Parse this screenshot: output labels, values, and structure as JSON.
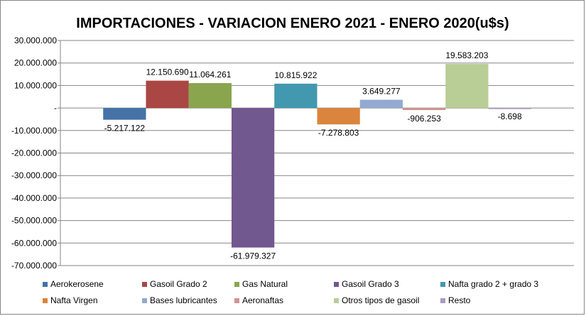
{
  "chart_data": {
    "type": "bar",
    "title": "IMPORTACIONES - VARIACION ENERO 2021  - ENERO 2020(u$s)",
    "xlabel": "",
    "ylabel": "",
    "ylim": [
      -70000000,
      30000000
    ],
    "yticks": [
      30000000,
      20000000,
      10000000,
      0,
      -10000000,
      -20000000,
      -30000000,
      -40000000,
      -50000000,
      -60000000,
      -70000000
    ],
    "ytick_labels": [
      "30.000.000",
      "20.000.000",
      "10.000.000",
      "-",
      "-10.000.000",
      "-20.000.000",
      "-30.000.000",
      "-40.000.000",
      "-50.000.000",
      "-60.000.000",
      "-70.000.000"
    ],
    "grid": true,
    "legend_position": "bottom",
    "series": [
      {
        "name": "Aerokerosene",
        "value": -5217122,
        "label": "-5.217.122",
        "color": "#4572A7"
      },
      {
        "name": "Gasoil Grado 2",
        "value": 12150690,
        "label": "12.150.690",
        "color": "#AA4643"
      },
      {
        "name": "Gas Natural",
        "value": 11064261,
        "label": "11.064.261",
        "color": "#89A54E"
      },
      {
        "name": "Gasoil Grado 3",
        "value": -61979327,
        "label": "-61.979.327",
        "color": "#71588F"
      },
      {
        "name": "Nafta grado 2 + grado 3",
        "value": 10815922,
        "label": "10.815.922",
        "color": "#4198AF"
      },
      {
        "name": "Nafta Virgen",
        "value": -7278803,
        "label": "-7.278.803",
        "color": "#DB843D"
      },
      {
        "name": "Bases lubricantes",
        "value": 3649277,
        "label": "3.649.277",
        "color": "#93A9CF"
      },
      {
        "name": "Aeronaftas",
        "value": -906253,
        "label": "-906.253",
        "color": "#D19392"
      },
      {
        "name": "Otros tipos de gasoil",
        "value": 19583203,
        "label": "19.583.203",
        "color": "#B9CD96"
      },
      {
        "name": "Resto",
        "value": -8698,
        "label": "-8.698",
        "color": "#A99BBD"
      }
    ]
  }
}
